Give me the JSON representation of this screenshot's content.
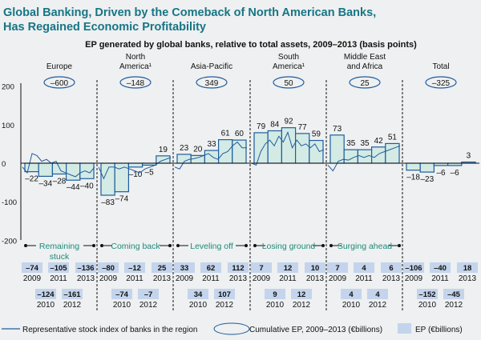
{
  "title_line1": "Global Banking, Driven by the Comeback of North American Banks,",
  "title_line2": "Has Regained Economic Profitability",
  "chart_data": {
    "type": "bar",
    "title": "EP generated by global banks, relative to total assets, 2009–2013 (basis points)",
    "ylim": [
      -200,
      200
    ],
    "yticks": [
      "200",
      "100",
      "0",
      "-100",
      "-200"
    ],
    "years": [
      "2009",
      "2010",
      "2011",
      "2012",
      "2013"
    ],
    "colors": {
      "title": "#177585",
      "bar_fill": "#d3ebe4",
      "bar_stroke": "#1f5c9e",
      "line": "#1f5c9e",
      "phase": "#1d8a7a",
      "ep_box": "#c4d4ec"
    },
    "regions": [
      {
        "name1": "",
        "name2": "Europe",
        "cumulative": "–600",
        "values": [
          -22,
          -34,
          -28,
          -44,
          -40
        ],
        "labels": [
          "–22",
          "–34",
          "–28",
          "–44",
          "–40"
        ],
        "phase1": "Remaining",
        "phase2": "stuck",
        "ep": [
          "–74",
          "–124",
          "–105",
          "–161",
          "–136"
        ],
        "stock_index": [
          -10,
          -25,
          25,
          20,
          5,
          10,
          0,
          5,
          -20,
          -25,
          -30,
          -35,
          -25,
          -20,
          -25,
          -10
        ]
      },
      {
        "name1": "North",
        "name2": "America¹",
        "cumulative": "–148",
        "values": [
          -83,
          -74,
          -10,
          -5,
          19
        ],
        "labels": [
          "–83",
          "–74",
          "–10",
          "–5",
          "19"
        ],
        "phase1": "Coming back",
        "phase2": "",
        "ep": [
          "–80",
          "–74",
          "–12",
          "–7",
          "25"
        ],
        "stock_index": [
          -10,
          -40,
          -10,
          -10,
          -15,
          -10,
          -15,
          -20,
          -25,
          -15,
          -10,
          -5,
          5,
          10,
          15
        ]
      },
      {
        "name1": "",
        "name2": "Asia-Pacific",
        "cumulative": "349",
        "values": [
          23,
          20,
          33,
          61,
          60
        ],
        "labels": [
          "23",
          "20",
          "33",
          "61",
          "60"
        ],
        "phase1": "Leveling off",
        "phase2": "",
        "ep": [
          "33",
          "34",
          "62",
          "107",
          "112"
        ],
        "stock_index": [
          -10,
          -15,
          5,
          10,
          12,
          15,
          20,
          25,
          15,
          10,
          25,
          30,
          45,
          55,
          40,
          40
        ]
      },
      {
        "name1": "South",
        "name2": "America¹",
        "cumulative": "50",
        "values": [
          79,
          84,
          92,
          77,
          59
        ],
        "labels": [
          "79",
          "84",
          "92",
          "77",
          "59"
        ],
        "phase1": "Losing ground",
        "phase2": "",
        "ep": [
          "7",
          "9",
          "12",
          "12",
          "10"
        ],
        "stock_index": [
          0,
          -5,
          30,
          50,
          60,
          45,
          70,
          55,
          80,
          40,
          60,
          45,
          50,
          40,
          50,
          30,
          35
        ]
      },
      {
        "name1": "Middle East",
        "name2": "and Africa",
        "cumulative": "25",
        "values": [
          73,
          35,
          35,
          42,
          51
        ],
        "labels": [
          "73",
          "35",
          "35",
          "42",
          "51"
        ],
        "phase1": "Surging ahead",
        "phase2": "",
        "ep": [
          "7",
          "4",
          "4",
          "4",
          "6"
        ],
        "stock_index": [
          -5,
          -20,
          5,
          10,
          8,
          15,
          20,
          15,
          20,
          15,
          25,
          30,
          35,
          40,
          45
        ]
      },
      {
        "name1": "",
        "name2": "Total",
        "cumulative": "–325",
        "values": [
          -18,
          -23,
          -6,
          -6,
          3
        ],
        "labels": [
          "–18",
          "–23",
          "–6",
          "–6",
          "3"
        ],
        "phase1": "",
        "phase2": "",
        "ep": [
          "–106",
          "–152",
          "–40",
          "–45",
          "18"
        ],
        "stock_index": []
      }
    ],
    "legend": {
      "line": "Representative stock index of banks in the region",
      "oval": "Cumulative EP, 2009–2013 (€billions)",
      "box": "EP (€billions)"
    }
  }
}
